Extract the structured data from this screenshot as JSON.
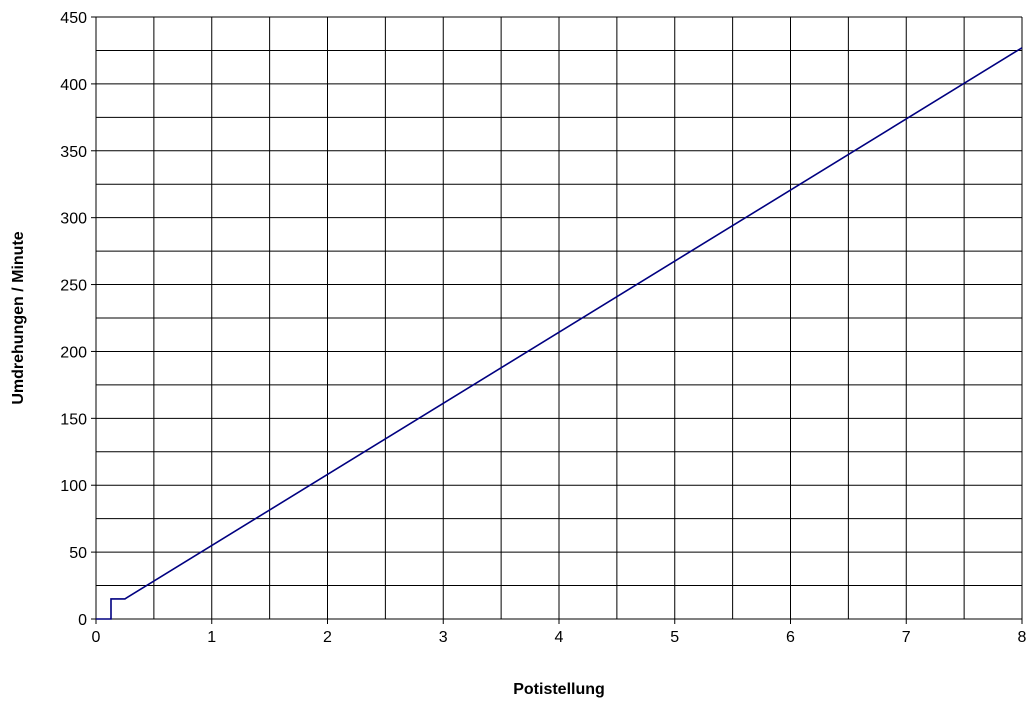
{
  "chart_data": {
    "type": "line",
    "title": "",
    "xlabel": "Potistellung",
    "ylabel": "Umdrehungen / Minute",
    "xlim": [
      0,
      8
    ],
    "ylim": [
      0,
      450
    ],
    "x_ticks": [
      0,
      1,
      2,
      3,
      4,
      5,
      6,
      7,
      8
    ],
    "x_minor_step": 0.5,
    "y_ticks": [
      0,
      50,
      100,
      150,
      200,
      250,
      300,
      350,
      400,
      450
    ],
    "y_minor_step": 25,
    "grid": true,
    "legend": "none",
    "series": [
      {
        "color": "#000080",
        "points": [
          [
            0,
            0
          ],
          [
            0.13,
            0
          ],
          [
            0.13,
            15
          ],
          [
            0.25,
            15
          ],
          [
            8,
            427
          ]
        ]
      }
    ]
  }
}
